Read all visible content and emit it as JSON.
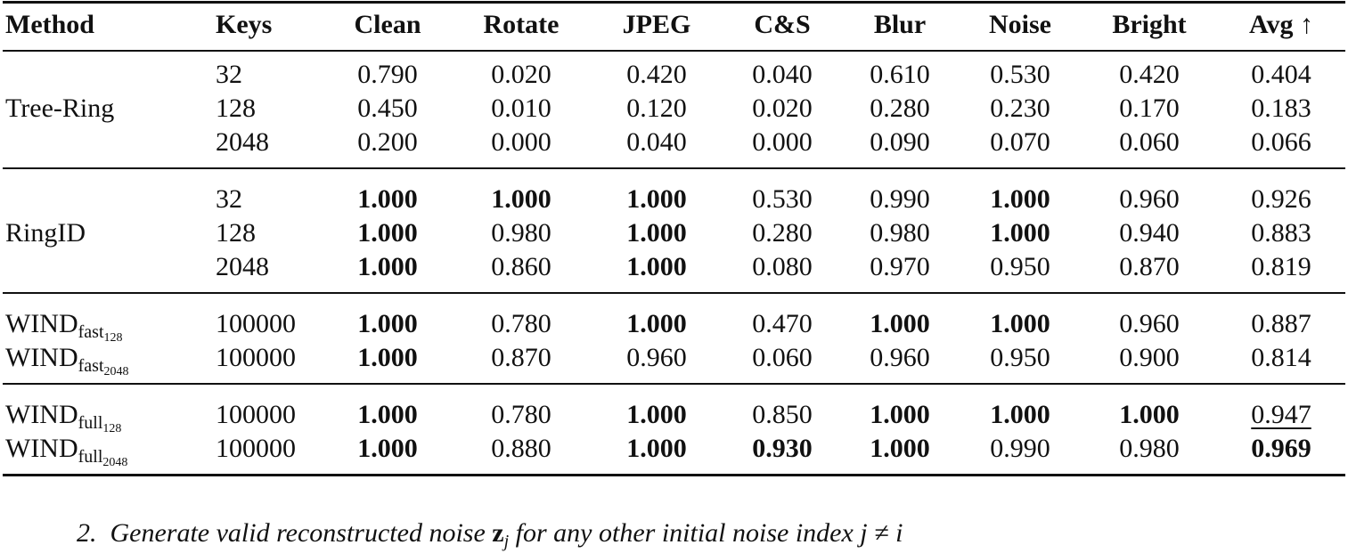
{
  "table": {
    "header": [
      "Method",
      "Keys",
      "Clean",
      "Rotate",
      "JPEG",
      "C&S",
      "Blur",
      "Noise",
      "Bright",
      "Avg ↑"
    ],
    "groups": [
      {
        "method": {
          "base": "Tree-Ring"
        },
        "rows": [
          {
            "keys": "32",
            "values": [
              "0.790",
              "0.020",
              "0.420",
              "0.040",
              "0.610",
              "0.530",
              "0.420",
              "0.404"
            ],
            "bold": [],
            "underline": []
          },
          {
            "keys": "128",
            "values": [
              "0.450",
              "0.010",
              "0.120",
              "0.020",
              "0.280",
              "0.230",
              "0.170",
              "0.183"
            ],
            "bold": [],
            "underline": []
          },
          {
            "keys": "2048",
            "values": [
              "0.200",
              "0.000",
              "0.040",
              "0.000",
              "0.090",
              "0.070",
              "0.060",
              "0.066"
            ],
            "bold": [],
            "underline": []
          }
        ]
      },
      {
        "method": {
          "base": "RingID"
        },
        "rows": [
          {
            "keys": "32",
            "values": [
              "1.000",
              "1.000",
              "1.000",
              "0.530",
              "0.990",
              "1.000",
              "0.960",
              "0.926"
            ],
            "bold": [
              0,
              1,
              2,
              5
            ],
            "underline": []
          },
          {
            "keys": "128",
            "values": [
              "1.000",
              "0.980",
              "1.000",
              "0.280",
              "0.980",
              "1.000",
              "0.940",
              "0.883"
            ],
            "bold": [
              0,
              2,
              5
            ],
            "underline": []
          },
          {
            "keys": "2048",
            "values": [
              "1.000",
              "0.860",
              "1.000",
              "0.080",
              "0.970",
              "0.950",
              "0.870",
              "0.819"
            ],
            "bold": [
              0,
              2
            ],
            "underline": []
          }
        ]
      },
      {
        "rows": [
          {
            "method": {
              "base": "WIND",
              "sub": "fast",
              "subsub": "128"
            },
            "keys": "100000",
            "values": [
              "1.000",
              "0.780",
              "1.000",
              "0.470",
              "1.000",
              "1.000",
              "0.960",
              "0.887"
            ],
            "bold": [
              0,
              2,
              4,
              5
            ],
            "underline": []
          },
          {
            "method": {
              "base": "WIND",
              "sub": "fast",
              "subsub": "2048"
            },
            "keys": "100000",
            "values": [
              "1.000",
              "0.870",
              "0.960",
              "0.060",
              "0.960",
              "0.950",
              "0.900",
              "0.814"
            ],
            "bold": [
              0
            ],
            "underline": []
          }
        ]
      },
      {
        "rows": [
          {
            "method": {
              "base": "WIND",
              "sub": "full",
              "subsub": "128"
            },
            "keys": "100000",
            "values": [
              "1.000",
              "0.780",
              "1.000",
              "0.850",
              "1.000",
              "1.000",
              "1.000",
              "0.947"
            ],
            "bold": [
              0,
              2,
              4,
              5,
              6
            ],
            "underline": [
              7
            ]
          },
          {
            "method": {
              "base": "WIND",
              "sub": "full",
              "subsub": "2048"
            },
            "keys": "100000",
            "values": [
              "1.000",
              "0.880",
              "1.000",
              "0.930",
              "1.000",
              "0.990",
              "0.980",
              "0.969"
            ],
            "bold": [
              0,
              2,
              3,
              4,
              7
            ],
            "underline": []
          }
        ]
      }
    ]
  },
  "footer": {
    "number": "2.",
    "text_before": "Generate valid reconstructed noise",
    "symbol": "z",
    "symbol_sub": "j",
    "text_after": "for any other initial noise index j ≠ i"
  }
}
